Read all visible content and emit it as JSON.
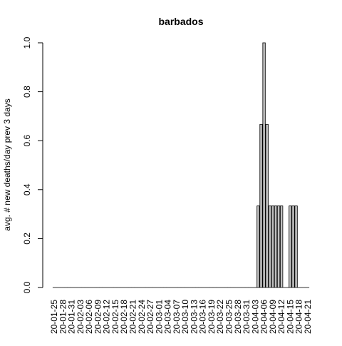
{
  "chart_data": {
    "type": "bar",
    "title": "barbados",
    "xlabel": "",
    "ylabel": "avg. # new deaths/day prev  3  days",
    "ylim": [
      0,
      1
    ],
    "yticks": [
      "0.0",
      "0.2",
      "0.4",
      "0.6",
      "0.8",
      "1.0"
    ],
    "bar_fill": "#bebebe",
    "bar_stroke": "#000000",
    "categories": [
      "20-01-25",
      "20-01-26",
      "20-01-27",
      "20-01-28",
      "20-01-29",
      "20-01-30",
      "20-01-31",
      "20-02-01",
      "20-02-02",
      "20-02-03",
      "20-02-04",
      "20-02-05",
      "20-02-06",
      "20-02-07",
      "20-02-08",
      "20-02-09",
      "20-02-10",
      "20-02-11",
      "20-02-12",
      "20-02-13",
      "20-02-14",
      "20-02-15",
      "20-02-16",
      "20-02-17",
      "20-02-18",
      "20-02-19",
      "20-02-20",
      "20-02-21",
      "20-02-22",
      "20-02-23",
      "20-02-24",
      "20-02-25",
      "20-02-26",
      "20-02-27",
      "20-02-28",
      "20-02-29",
      "20-03-01",
      "20-03-02",
      "20-03-03",
      "20-03-04",
      "20-03-05",
      "20-03-06",
      "20-03-07",
      "20-03-08",
      "20-03-09",
      "20-03-10",
      "20-03-11",
      "20-03-12",
      "20-03-13",
      "20-03-14",
      "20-03-15",
      "20-03-16",
      "20-03-17",
      "20-03-18",
      "20-03-19",
      "20-03-20",
      "20-03-21",
      "20-03-22",
      "20-03-23",
      "20-03-24",
      "20-03-25",
      "20-03-26",
      "20-03-27",
      "20-03-28",
      "20-03-29",
      "20-03-30",
      "20-03-31",
      "20-04-01",
      "20-04-02",
      "20-04-03",
      "20-04-04",
      "20-04-05",
      "20-04-06",
      "20-04-07",
      "20-04-08",
      "20-04-09",
      "20-04-10",
      "20-04-11",
      "20-04-12",
      "20-04-13",
      "20-04-14",
      "20-04-15",
      "20-04-16",
      "20-04-17",
      "20-04-18",
      "20-04-19",
      "20-04-20",
      "20-04-21"
    ],
    "values": [
      0,
      0,
      0,
      0,
      0,
      0,
      0,
      0,
      0,
      0,
      0,
      0,
      0,
      0,
      0,
      0,
      0,
      0,
      0,
      0,
      0,
      0,
      0,
      0,
      0,
      0,
      0,
      0,
      0,
      0,
      0,
      0,
      0,
      0,
      0,
      0,
      0,
      0,
      0,
      0,
      0,
      0,
      0,
      0,
      0,
      0,
      0,
      0,
      0,
      0,
      0,
      0,
      0,
      0,
      0,
      0,
      0,
      0,
      0,
      0,
      0,
      0,
      0,
      0,
      0,
      0,
      0,
      0,
      0,
      0,
      0.3333,
      0.6667,
      1.0,
      0.6667,
      0.3333,
      0.3333,
      0.3333,
      0.3333,
      0.3333,
      0,
      0,
      0.3333,
      0.3333,
      0.3333,
      0,
      0,
      0,
      0
    ],
    "labeled_ticks": [
      "20-01-25",
      "20-01-28",
      "20-01-31",
      "20-02-03",
      "20-02-06",
      "20-02-09",
      "20-02-12",
      "20-02-15",
      "20-02-18",
      "20-02-21",
      "20-02-24",
      "20-02-27",
      "20-03-01",
      "20-03-04",
      "20-03-07",
      "20-03-10",
      "20-03-13",
      "20-03-16",
      "20-03-19",
      "20-03-22",
      "20-03-25",
      "20-03-28",
      "20-03-31",
      "20-04-03",
      "20-04-06",
      "20-04-09",
      "20-04-12",
      "20-04-15",
      "20-04-18",
      "20-04-21"
    ]
  }
}
